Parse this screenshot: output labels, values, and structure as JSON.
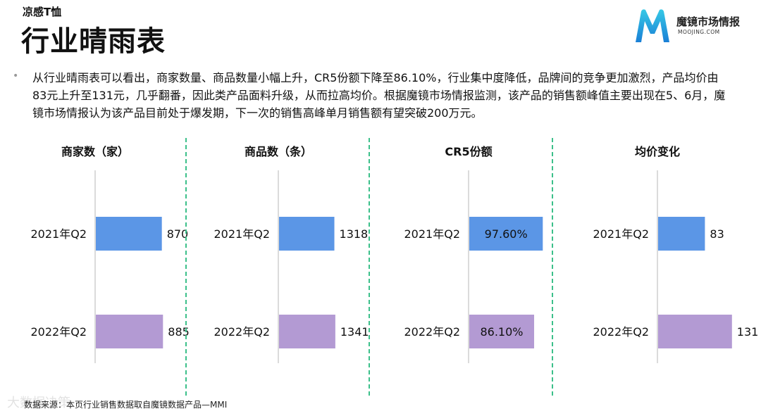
{
  "header": {
    "subtitle": "凉感T恤",
    "title": "行业晴雨表"
  },
  "logo": {
    "name": "魔镜市场情报",
    "domain": "MOOJING.COM"
  },
  "summary": "从行业晴雨表可以看出，商家数量、商品数量小幅上升，CR5份额下降至86.10%，行业集中度降低，品牌间的竞争更加激烈，产品均价由83元上升至131元，几乎翻番，因此类产品面料升级，从而拉高均价。根据魔镜市场情报监测，该产品的销售额峰值主要出现在5、6月，魔镜市场情报认为该产品目前处于爆发期，下一次的销售高峰单月销售额有望突破200万元。",
  "source": "数据来源：本页行业销售数据取自魔镜数据产品—MMI",
  "watermark": "大数据决策",
  "colors": {
    "q1": "#5b96e6",
    "q2": "#b39ad3",
    "divider": "#3cc08a",
    "axis": "#cfcfcf"
  },
  "chart_data": [
    {
      "type": "bar",
      "title": "商家数（家）",
      "categories": [
        "2021年Q2",
        "2022年Q2"
      ],
      "values": [
        870,
        885
      ],
      "labels": [
        "870",
        "885"
      ],
      "max": 1300,
      "label_inside": false
    },
    {
      "type": "bar",
      "title": "商品数（条）",
      "categories": [
        "2021年Q2",
        "2022年Q2"
      ],
      "values": [
        1318,
        1341
      ],
      "labels": [
        "1318",
        "1341"
      ],
      "max": 2350,
      "label_inside": false
    },
    {
      "type": "bar",
      "title": "CR5份额",
      "categories": [
        "2021年Q2",
        "2022年Q2"
      ],
      "values": [
        97.6,
        86.1
      ],
      "labels": [
        "97.60%",
        "86.10%"
      ],
      "max": 131,
      "label_inside": true
    },
    {
      "type": "bar",
      "title": "均价变化",
      "categories": [
        "2021年Q2",
        "2022年Q2"
      ],
      "values": [
        83,
        131
      ],
      "labels": [
        "83",
        "131"
      ],
      "max": 175,
      "label_inside": false
    }
  ]
}
